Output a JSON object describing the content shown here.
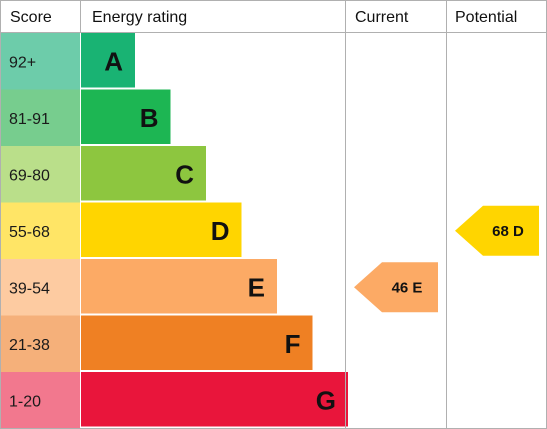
{
  "headers": {
    "score": "Score",
    "energy_rating": "Energy rating",
    "current": "Current",
    "potential": "Potential"
  },
  "chart_data": {
    "type": "bar",
    "title": "",
    "bands": [
      {
        "score": "92+",
        "letter": "A",
        "color": "#19b373",
        "score_bg": "#6dccaa"
      },
      {
        "score": "81-91",
        "letter": "B",
        "color": "#1db653",
        "score_bg": "#77cd8e"
      },
      {
        "score": "69-80",
        "letter": "C",
        "color": "#8dc63f",
        "score_bg": "#badf8a"
      },
      {
        "score": "55-68",
        "letter": "D",
        "color": "#ffd500",
        "score_bg": "#ffe566"
      },
      {
        "score": "39-54",
        "letter": "E",
        "color": "#fcaa65",
        "score_bg": "#fdcba1"
      },
      {
        "score": "21-38",
        "letter": "F",
        "color": "#ef8023",
        "score_bg": "#f5b07a"
      },
      {
        "score": "1-20",
        "letter": "G",
        "color": "#e9153b",
        "score_bg": "#f2788e"
      }
    ],
    "current": {
      "value": 46,
      "letter": "E",
      "label": "46 E",
      "color": "#fcaa65"
    },
    "potential": {
      "value": 68,
      "letter": "D",
      "label": "68 D",
      "color": "#ffd500"
    }
  }
}
